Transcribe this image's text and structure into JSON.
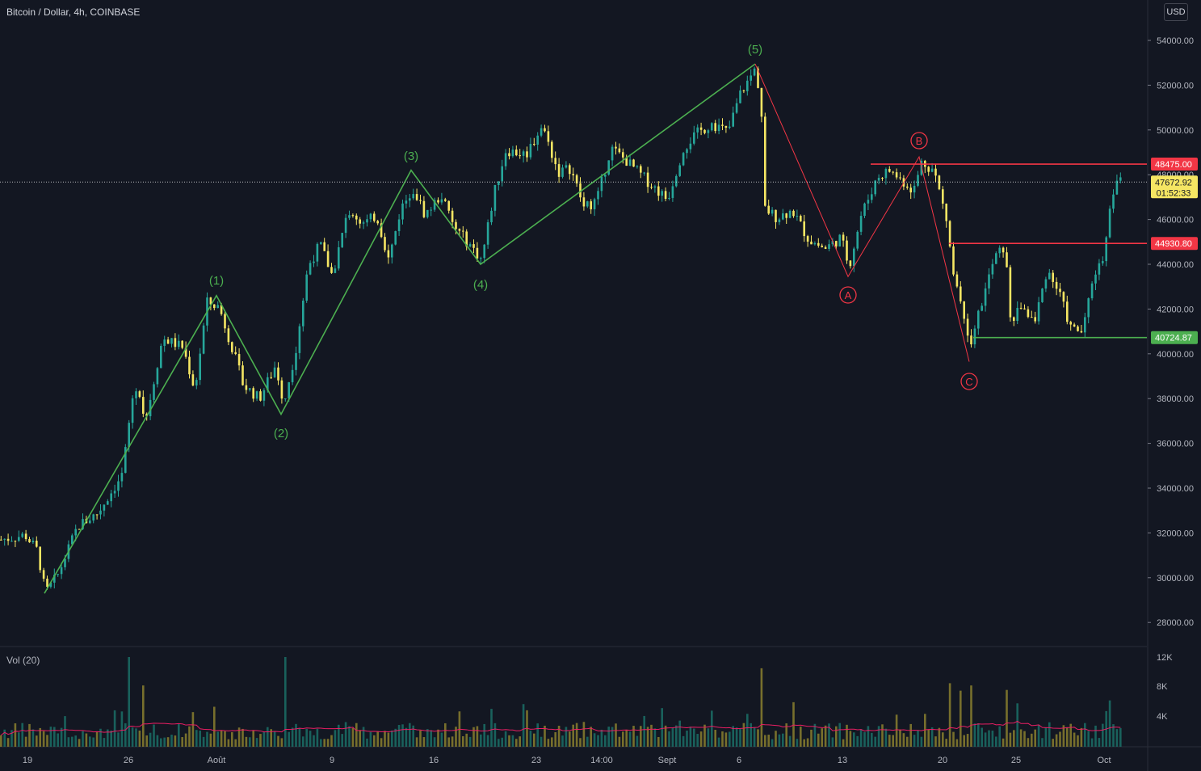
{
  "header": {
    "symbol_title": "Bitcoin / Dollar, 4h, COINBASE"
  },
  "currency_button": "USD",
  "volume_pane": {
    "label": "Vol (20)",
    "ticks": [
      "12K",
      "8K",
      "4K"
    ]
  },
  "colors": {
    "background": "#131722",
    "up": "#26a69a",
    "down": "#f5e663",
    "green_wave": "#4caf50",
    "red_wave": "#f23645",
    "volume_ma": "#e91e63",
    "price_line": "#ffffff"
  },
  "chart_data": {
    "type": "candlestick",
    "y_axis": {
      "ticks": [
        54000,
        52000,
        50000,
        48000,
        46000,
        44000,
        42000,
        40000,
        38000,
        36000,
        34000,
        32000,
        30000,
        28000
      ],
      "tick_labels": [
        "54000.00",
        "52000.00",
        "50000.00",
        "48000.00",
        "46000.00",
        "44000.00",
        "42000.00",
        "40000.00",
        "38000.00",
        "36000.00",
        "34000.00",
        "32000.00",
        "30000.00",
        "28000.00"
      ]
    },
    "x_axis": {
      "tick_labels": [
        "19",
        "26",
        "Août",
        "9",
        "16",
        "23",
        "14:00",
        "Sept",
        "6",
        "13",
        "20",
        "25",
        "Oct"
      ]
    },
    "current_price": {
      "value": "47672.92",
      "countdown": "01:52:33"
    },
    "price_levels": [
      {
        "value": 48475.0,
        "label": "48475.00",
        "color": "#f23645"
      },
      {
        "value": 44930.8,
        "label": "44930.80",
        "color": "#f23645"
      },
      {
        "value": 40724.87,
        "label": "40724.87",
        "color": "#4caf50"
      }
    ],
    "elliott_impulse": [
      {
        "label": "",
        "price": 29300
      },
      {
        "label": "(1)",
        "price": 42600
      },
      {
        "label": "(2)",
        "price": 37300
      },
      {
        "label": "(3)",
        "price": 48200
      },
      {
        "label": "(4)",
        "price": 44000
      },
      {
        "label": "(5)",
        "price": 52950
      }
    ],
    "corrective_wave": [
      {
        "label": "",
        "price": 52950
      },
      {
        "label": "A",
        "price": 43450
      },
      {
        "label": "B",
        "price": 48800
      },
      {
        "label": "C",
        "price": 39650
      }
    ]
  }
}
